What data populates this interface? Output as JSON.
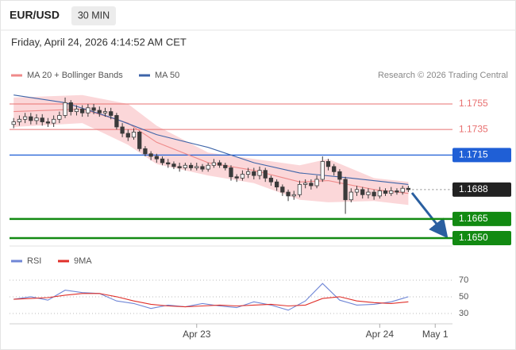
{
  "header": {
    "symbol": "EUR/USD",
    "timeframe": "30 MIN",
    "datetime": "Friday, April 24, 2026 4:14:52 AM CET",
    "credit": "Research © 2026 Trading Central"
  },
  "chart_data": [
    {
      "type": "candlestick",
      "xlim": [
        -1,
        77
      ],
      "ylim": [
        1.1642,
        1.1764
      ],
      "x": [
        0,
        1,
        2,
        3,
        4,
        5,
        6,
        7,
        8,
        9,
        10,
        11,
        12,
        13,
        14,
        15,
        16,
        17,
        18,
        19,
        20,
        21,
        22,
        23,
        24,
        25,
        26,
        27,
        28,
        29,
        30,
        31,
        32,
        33,
        34,
        35,
        36,
        37,
        38,
        39,
        40,
        41,
        42,
        43,
        44,
        45,
        46,
        47,
        48,
        49,
        50,
        51,
        52,
        53,
        54,
        55,
        56,
        57,
        58,
        59,
        60,
        61,
        62,
        63,
        64,
        65,
        66,
        67,
        68,
        69
      ],
      "open": [
        1.1739,
        1.1741,
        1.1743,
        1.1745,
        1.1742,
        1.1744,
        1.1741,
        1.174,
        1.1743,
        1.1746,
        1.1756,
        1.1749,
        1.1751,
        1.1748,
        1.1752,
        1.175,
        1.1748,
        1.1749,
        1.1746,
        1.1737,
        1.1732,
        1.1729,
        1.1733,
        1.172,
        1.1716,
        1.1714,
        1.1712,
        1.1709,
        1.1708,
        1.1706,
        1.1705,
        1.1707,
        1.1705,
        1.1706,
        1.1704,
        1.1707,
        1.1709,
        1.1707,
        1.1705,
        1.1698,
        1.1697,
        1.17,
        1.1702,
        1.1699,
        1.1703,
        1.1697,
        1.1694,
        1.169,
        1.1686,
        1.1683,
        1.1684,
        1.1692,
        1.1693,
        1.1691,
        1.1696,
        1.171,
        1.1706,
        1.1702,
        1.1696,
        1.168,
        1.1686,
        1.1688,
        1.1684,
        1.1686,
        1.1683,
        1.1687,
        1.1685,
        1.1687,
        1.1686,
        1.1689
      ],
      "high": [
        1.1744,
        1.1746,
        1.1748,
        1.1748,
        1.1747,
        1.1747,
        1.1744,
        1.1746,
        1.1749,
        1.176,
        1.1758,
        1.1754,
        1.1754,
        1.1755,
        1.1755,
        1.1753,
        1.1752,
        1.1752,
        1.1748,
        1.174,
        1.1735,
        1.1736,
        1.1734,
        1.1722,
        1.1718,
        1.1716,
        1.1714,
        1.1712,
        1.171,
        1.1709,
        1.1709,
        1.1709,
        1.1709,
        1.1708,
        1.1709,
        1.1712,
        1.1711,
        1.1709,
        1.1707,
        1.17,
        1.1703,
        1.1705,
        1.1705,
        1.1706,
        1.1705,
        1.1699,
        1.1696,
        1.1692,
        1.1688,
        1.1687,
        1.1695,
        1.1696,
        1.1696,
        1.1699,
        1.1714,
        1.1712,
        1.1708,
        1.1704,
        1.1698,
        1.1689,
        1.1691,
        1.169,
        1.1689,
        1.1688,
        1.169,
        1.1689,
        1.169,
        1.1689,
        1.1691,
        1.1691
      ],
      "low": [
        1.1736,
        1.1738,
        1.174,
        1.1739,
        1.1739,
        1.1738,
        1.1737,
        1.1737,
        1.174,
        1.1744,
        1.1746,
        1.1746,
        1.1745,
        1.1745,
        1.1747,
        1.1745,
        1.1745,
        1.1743,
        1.1735,
        1.1729,
        1.1726,
        1.1727,
        1.1718,
        1.1714,
        1.1711,
        1.1709,
        1.1707,
        1.1705,
        1.1704,
        1.1702,
        1.1703,
        1.1703,
        1.1703,
        1.1702,
        1.1702,
        1.1705,
        1.1705,
        1.1703,
        1.1695,
        1.1694,
        1.1695,
        1.1697,
        1.1696,
        1.1696,
        1.1694,
        1.1691,
        1.1687,
        1.1683,
        1.1679,
        1.168,
        1.1682,
        1.1689,
        1.1688,
        1.1689,
        1.1694,
        1.1703,
        1.1699,
        1.1692,
        1.1669,
        1.1678,
        1.1683,
        1.1681,
        1.1681,
        1.168,
        1.1681,
        1.1683,
        1.1683,
        1.1684,
        1.1684,
        1.1686
      ],
      "close": [
        1.1741,
        1.1743,
        1.1745,
        1.1742,
        1.1744,
        1.1741,
        1.174,
        1.1743,
        1.1746,
        1.1756,
        1.1749,
        1.1751,
        1.1748,
        1.1752,
        1.175,
        1.1748,
        1.1749,
        1.1746,
        1.1737,
        1.1732,
        1.1729,
        1.1733,
        1.172,
        1.1716,
        1.1714,
        1.1712,
        1.1709,
        1.1708,
        1.1706,
        1.1705,
        1.1707,
        1.1705,
        1.1706,
        1.1704,
        1.1707,
        1.1709,
        1.1707,
        1.1705,
        1.1698,
        1.1697,
        1.17,
        1.1702,
        1.1699,
        1.1703,
        1.1697,
        1.1694,
        1.169,
        1.1686,
        1.1683,
        1.1684,
        1.1692,
        1.1693,
        1.1691,
        1.1696,
        1.171,
        1.1706,
        1.1702,
        1.1696,
        1.168,
        1.1686,
        1.1688,
        1.1684,
        1.1686,
        1.1683,
        1.1687,
        1.1685,
        1.1687,
        1.1686,
        1.1689,
        1.1688
      ],
      "up_color": "#ffffff",
      "down_color": "#3a3a3a",
      "wick_color": "#3a3a3a",
      "series": [
        {
          "name": "MA 20 + Bollinger Bands",
          "color": "#ef8a8a",
          "band_color": "#f9c9cc",
          "x": [
            0,
            12,
            20,
            25,
            34,
            42,
            50,
            55,
            63,
            69
          ],
          "values": [
            1.1749,
            1.1751,
            1.174,
            1.1725,
            1.1709,
            1.1703,
            1.1694,
            1.1695,
            1.1688,
            1.1685
          ],
          "upper": [
            1.176,
            1.1762,
            1.1755,
            1.1738,
            1.1717,
            1.1712,
            1.1707,
            1.1712,
            1.1697,
            1.1694
          ],
          "lower": [
            1.1737,
            1.174,
            1.1723,
            1.1708,
            1.1699,
            1.1693,
            1.168,
            1.1678,
            1.1679,
            1.1676
          ]
        },
        {
          "name": "MA 50",
          "color": "#3d64a8",
          "x": [
            0,
            9,
            18,
            25,
            34,
            42,
            50,
            59,
            69
          ],
          "values": [
            1.1762,
            1.1756,
            1.1743,
            1.1731,
            1.1721,
            1.1709,
            1.1701,
            1.1697,
            1.1692
          ]
        }
      ],
      "levels": [
        {
          "value": 1.1755,
          "label": "1.1755",
          "color": "#e87070",
          "boxed": false,
          "width": 1,
          "dotted": false
        },
        {
          "value": 1.1735,
          "label": "1.1735",
          "color": "#e87070",
          "boxed": false,
          "width": 1,
          "dotted": false
        },
        {
          "value": 1.1715,
          "label": "1.1715",
          "color": "#1f5fd6",
          "boxed": true,
          "width": 1.2,
          "dotted": false
        },
        {
          "value": 1.1688,
          "label": "1.1688",
          "color": "#222222",
          "boxed": true,
          "width": 1,
          "dotted": true
        },
        {
          "value": 1.1665,
          "label": "1.1665",
          "color": "#128a12",
          "boxed": true,
          "width": 2.5,
          "dotted": false
        },
        {
          "value": 1.165,
          "label": "1.1650",
          "color": "#128a12",
          "boxed": true,
          "width": 2.5,
          "dotted": false
        }
      ]
    },
    {
      "type": "line",
      "xlim": [
        -1,
        77
      ],
      "ylim": [
        23,
        83
      ],
      "yticks": [
        30,
        50,
        70
      ],
      "grid": true,
      "xticks": [
        {
          "value": 32,
          "label": "Apr 23"
        },
        {
          "value": 64,
          "label": "Apr 24"
        },
        {
          "value": 73.7,
          "label": "May 1"
        }
      ],
      "series": [
        {
          "name": "RSI",
          "color": "#6f86d6",
          "x": [
            0,
            3,
            6,
            9,
            12,
            15,
            18,
            21,
            24,
            27,
            30,
            33,
            36,
            39,
            42,
            45,
            48,
            51,
            54,
            57,
            60,
            63,
            66,
            69
          ],
          "values": [
            47,
            50,
            46,
            58,
            55,
            54,
            45,
            42,
            36,
            40,
            38,
            42,
            39,
            37,
            44,
            40,
            34,
            45,
            66,
            46,
            40,
            41,
            44,
            50
          ]
        },
        {
          "name": "9MA",
          "color": "#e0302a",
          "x": [
            0,
            3,
            6,
            9,
            12,
            15,
            18,
            21,
            24,
            27,
            30,
            33,
            36,
            39,
            42,
            45,
            48,
            51,
            54,
            57,
            60,
            63,
            66,
            69
          ],
          "values": [
            47,
            48,
            49,
            52,
            54,
            54,
            50,
            45,
            41,
            39,
            38,
            39,
            40,
            39,
            40,
            41,
            39,
            40,
            48,
            50,
            45,
            43,
            42,
            44
          ]
        }
      ]
    }
  ]
}
